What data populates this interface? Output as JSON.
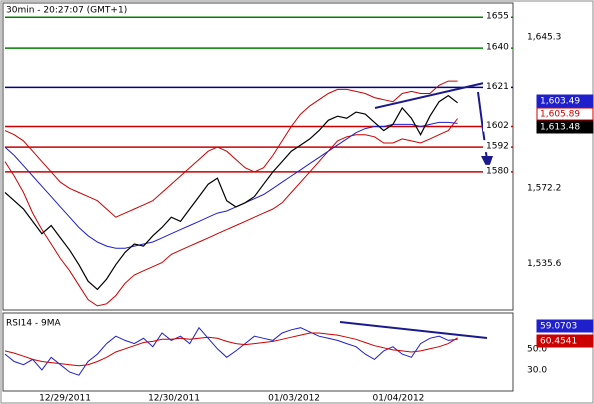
{
  "chart_data": [
    {
      "type": "line",
      "title": "30min - 20:27:07 (GMT+1)",
      "xlim": [
        0,
        55
      ],
      "ylim": [
        1513.5,
        1661.4
      ],
      "yticks": [
        {
          "value": 1645.3,
          "label": "1,645.3"
        },
        {
          "value": 1572.2,
          "label": "1,572.2"
        },
        {
          "value": 1535.6,
          "label": "1,535.6"
        }
      ],
      "grid": true,
      "levels": [
        {
          "value": 1655,
          "color": "#008000"
        },
        {
          "value": 1640,
          "color": "#008000"
        },
        {
          "value": 1621,
          "color": "#00008b"
        },
        {
          "value": 1602,
          "color": "#cc0000"
        },
        {
          "value": 1592,
          "color": "#cc0000"
        },
        {
          "value": 1580,
          "color": "#cc0000"
        }
      ],
      "series": [
        {
          "color": "#cc0000",
          "values": [
            1600,
            1598,
            1595,
            1590,
            1585,
            1580,
            1575,
            1572,
            1570,
            1568,
            1566,
            1562,
            1558,
            1560,
            1562,
            1564,
            1566,
            1570,
            1574,
            1578,
            1582,
            1586,
            1590,
            1592,
            1590,
            1586,
            1582,
            1580,
            1582,
            1588,
            1595,
            1602,
            1608,
            1612,
            1615,
            1618,
            1620,
            1620,
            1619,
            1618,
            1616,
            1615,
            1614,
            1618,
            1619,
            1618,
            1618,
            1622,
            1624,
            1624
          ]
        },
        {
          "color": "#cc0000",
          "values": [
            1585,
            1578,
            1570,
            1560,
            1552,
            1545,
            1538,
            1532,
            1525,
            1518,
            1515,
            1516,
            1520,
            1526,
            1530,
            1532,
            1534,
            1536,
            1540,
            1542,
            1544,
            1546,
            1548,
            1550,
            1552,
            1554,
            1556,
            1558,
            1560,
            1562,
            1565,
            1570,
            1575,
            1580,
            1585,
            1590,
            1595,
            1597,
            1598,
            1598,
            1597,
            1594,
            1594,
            1596,
            1595,
            1594,
            1596,
            1598,
            1600,
            1605.89
          ]
        },
        {
          "color": "#1f1fcc",
          "values": [
            1592,
            1588,
            1583,
            1578,
            1573,
            1568,
            1563,
            1558,
            1553,
            1549,
            1546,
            1544,
            1543,
            1543,
            1544,
            1545,
            1546,
            1548,
            1550,
            1552,
            1554,
            1556,
            1558,
            1560,
            1561,
            1563,
            1565,
            1567,
            1569,
            1572,
            1575,
            1578,
            1581,
            1584,
            1587,
            1590,
            1593,
            1596,
            1599,
            1601,
            1602,
            1602,
            1603,
            1603,
            1603,
            1602,
            1603,
            1604,
            1604,
            1603.49
          ],
          "value_labels": {
            "49": "1,603.49"
          }
        },
        {
          "color": "#000000",
          "values": [
            1570,
            1566,
            1562,
            1556,
            1550,
            1554,
            1548,
            1542,
            1535,
            1527,
            1523,
            1528,
            1535,
            1541,
            1545,
            1544,
            1549,
            1553,
            1558,
            1556,
            1562,
            1568,
            1574,
            1577,
            1566,
            1563,
            1565,
            1568,
            1574,
            1580,
            1585,
            1590,
            1593,
            1596,
            1600,
            1605,
            1607,
            1606,
            1609,
            1608,
            1604,
            1600,
            1603,
            1611,
            1606,
            1598,
            1607,
            1614,
            1617,
            1613.48
          ],
          "value_labels": {
            "49": "1,613.48"
          }
        }
      ],
      "band_label": {
        "series": 1,
        "label": "1,605.89"
      }
    },
    {
      "type": "line",
      "title": "RSI14 - 9MA",
      "xlim": [
        0,
        55
      ],
      "ylim": [
        11,
        83
      ],
      "yticks": [
        {
          "value": 50,
          "label": "50.0"
        },
        {
          "value": 30,
          "label": "30.0"
        }
      ],
      "xticks": [
        {
          "value": 6.5,
          "label": "12/29/2011"
        },
        {
          "value": 18.3,
          "label": "12/30/2011"
        },
        {
          "value": 31.3,
          "label": "01/03/2012"
        },
        {
          "value": 42.6,
          "label": "01/04/2012"
        }
      ],
      "grid": true,
      "series": [
        {
          "color": "#1f1fcc",
          "values": [
            45,
            38,
            35,
            40,
            30,
            42,
            35,
            28,
            25,
            38,
            45,
            55,
            62,
            58,
            55,
            60,
            52,
            65,
            58,
            62,
            55,
            70,
            60,
            50,
            42,
            48,
            55,
            62,
            60,
            58,
            65,
            68,
            70,
            66,
            62,
            60,
            58,
            55,
            52,
            45,
            40,
            48,
            52,
            45,
            42,
            55,
            60,
            62,
            58,
            59.0703
          ],
          "value_labels": {
            "49": "59.0703"
          }
        },
        {
          "color": "#cc0000",
          "values": [
            48,
            46,
            43,
            40,
            38,
            37,
            36,
            35,
            34,
            35,
            38,
            42,
            47,
            50,
            53,
            56,
            57,
            59,
            59,
            60,
            59,
            60,
            61,
            60,
            57,
            55,
            54,
            55,
            56,
            57,
            59,
            61,
            63,
            65,
            65,
            64,
            63,
            61,
            59,
            56,
            53,
            51,
            49,
            48,
            47,
            48,
            50,
            52,
            55,
            60.4541
          ],
          "value_labels": {
            "49": "60.4541"
          }
        }
      ]
    }
  ]
}
